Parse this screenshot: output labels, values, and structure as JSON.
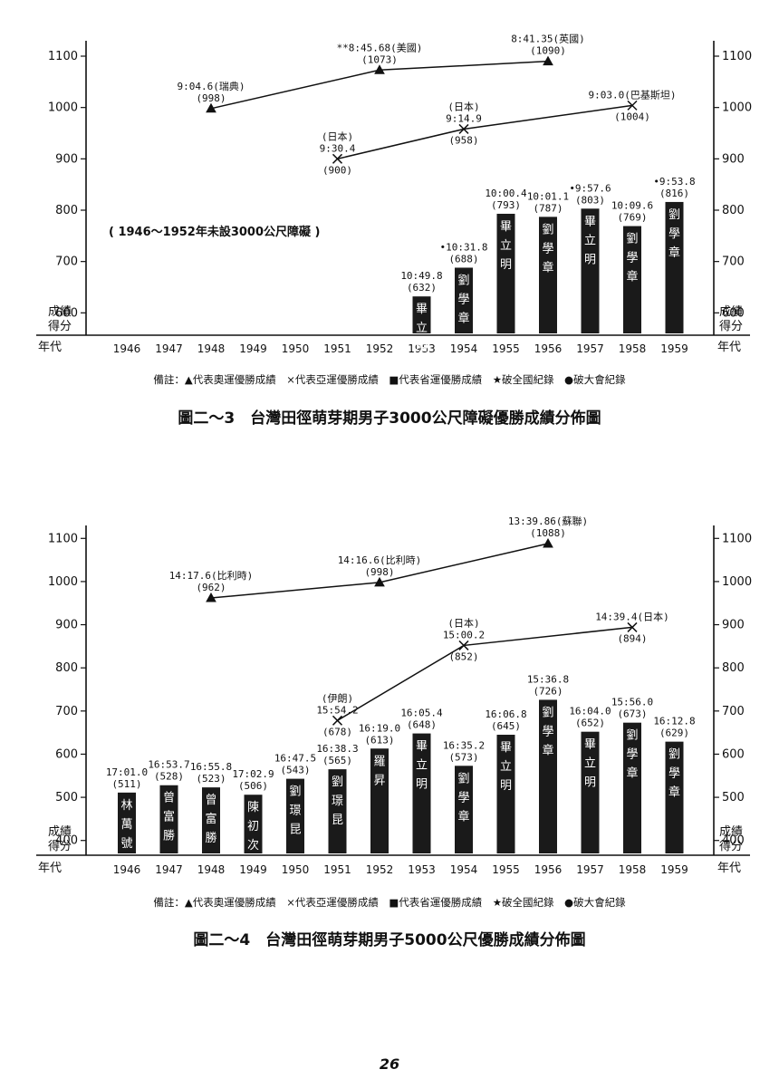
{
  "page_number": "26",
  "chart_data": [
    {
      "type": "bar",
      "title": "圖二～3　台灣田徑萌芽期男子3000公尺障礙優勝成績分佈圖",
      "xlabel": "年代",
      "ylabel": "成績得分",
      "ylabel_right": "成績得分",
      "xlabel_right": "年代",
      "ylim": [
        560,
        1130
      ],
      "yticks": [
        600,
        700,
        800,
        900,
        1000,
        1100
      ],
      "categories": [
        "1946",
        "1947",
        "1948",
        "1949",
        "1950",
        "1951",
        "1952",
        "1953",
        "1954",
        "1955",
        "1956",
        "1957",
        "1958",
        "1959"
      ],
      "note": "( 1946～1952年未設3000公尺障礙 )",
      "legend": "備註：▲代表奧運優勝成績　×代表亞運優勝成績　■代表省運優勝成績　★破全國紀錄　●破大會紀錄",
      "series": [
        {
          "marker": "bar",
          "values": [
            null,
            null,
            null,
            null,
            null,
            null,
            null,
            632,
            688,
            793,
            787,
            803,
            769,
            816
          ],
          "labels": [
            "",
            "",
            "",
            "",
            "",
            "",
            "",
            "10:49.8\n(632)",
            "•10:31.8\n(688)",
            "10:00.4\n(793)",
            "10:01.1\n(787)",
            "•9:57.6\n(803)",
            "10:09.6\n(769)",
            "•9:53.8\n(816)"
          ],
          "names": [
            "",
            "",
            "",
            "",
            "",
            "",
            "",
            "畢立明",
            "劉學章",
            "畢立明",
            "劉學章",
            "畢立明",
            "劉學章",
            "劉學章"
          ]
        },
        {
          "marker": "triangle",
          "points": [
            {
              "x": "1948",
              "y": 998,
              "label": "9:04.6(瑞典)\n(998)"
            },
            {
              "x": "1952",
              "y": 1073,
              "label": "**8:45.68(美國)\n(1073)"
            },
            {
              "x": "1956",
              "y": 1090,
              "label": "8:41.35(英國)\n(1090)"
            }
          ]
        },
        {
          "marker": "cross",
          "points": [
            {
              "x": "1951",
              "y": 900,
              "label": "(日本)\n9:30.4\n(900)"
            },
            {
              "x": "1954",
              "y": 958,
              "label": "(日本)\n9:14.9\n(958)"
            },
            {
              "x": "1958",
              "y": 1004,
              "label": "9:03.0(巴基斯坦)\n(1004)"
            }
          ]
        }
      ]
    },
    {
      "type": "bar",
      "title": "圖二～4　台灣田徑萌芽期男子5000公尺優勝成績分佈圖",
      "xlabel": "年代",
      "ylabel": "成績得分",
      "ylabel_right": "成績得分",
      "xlabel_right": "年代",
      "ylim": [
        370,
        1130
      ],
      "yticks": [
        400,
        500,
        600,
        700,
        800,
        900,
        1000,
        1100
      ],
      "categories": [
        "1946",
        "1947",
        "1948",
        "1949",
        "1950",
        "1951",
        "1952",
        "1953",
        "1954",
        "1955",
        "1956",
        "1957",
        "1958",
        "1959"
      ],
      "note": "",
      "legend": "備註：▲代表奧運優勝成績　×代表亞運優勝成績　■代表省運優勝成績　★破全國紀錄　●破大會紀錄",
      "series": [
        {
          "marker": "bar",
          "values": [
            511,
            528,
            523,
            506,
            543,
            565,
            613,
            648,
            573,
            645,
            726,
            652,
            673,
            629
          ],
          "labels": [
            "17:01.0\n(511)",
            "16:53.7\n(528)",
            "16:55.8\n(523)",
            "17:02.9\n(506)",
            "16:47.5\n(543)",
            "16:38.3\n(565)",
            "16:19.0\n(613)",
            "16:05.4\n(648)",
            "16:35.2\n(573)",
            "16:06.8\n(645)",
            "15:36.8\n(726)",
            "16:04.0\n(652)",
            "15:56.0\n(673)",
            "16:12.8\n(629)"
          ],
          "names": [
            "林萬號",
            "曾富勝",
            "曾富勝",
            "陳初次",
            "劉璟昆",
            "劉璟昆",
            "羅昇",
            "畢立明",
            "劉學章",
            "畢立明",
            "劉學章",
            "畢立明",
            "劉學章",
            "劉學章"
          ]
        },
        {
          "marker": "triangle",
          "points": [
            {
              "x": "1948",
              "y": 962,
              "label": "14:17.6(比利時)\n(962)"
            },
            {
              "x": "1952",
              "y": 998,
              "label": "14:16.6(比利時)\n(998)"
            },
            {
              "x": "1956",
              "y": 1088,
              "label": "13:39.86(蘇聯)\n(1088)"
            }
          ]
        },
        {
          "marker": "cross",
          "points": [
            {
              "x": "1951",
              "y": 678,
              "label": "(伊朗)\n15:54.2\n(678)"
            },
            {
              "x": "1954",
              "y": 852,
              "label": "(日本)\n15:00.2\n(852)"
            },
            {
              "x": "1958",
              "y": 894,
              "label": "14:39.4(日本)\n(894)"
            }
          ]
        }
      ]
    }
  ]
}
